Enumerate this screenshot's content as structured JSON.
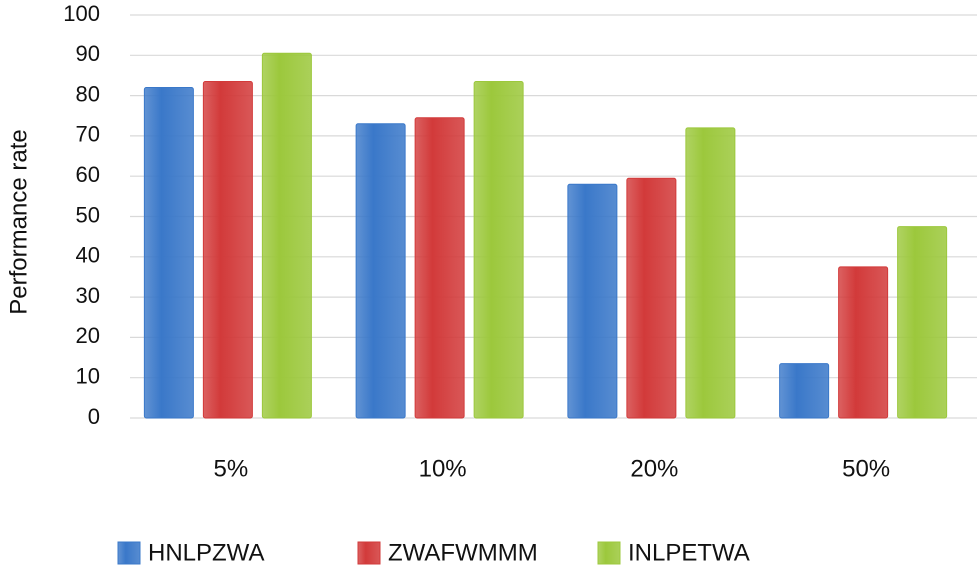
{
  "chart_data": {
    "type": "bar",
    "y_label": "Performance rate",
    "categories": [
      "5%",
      "10%",
      "20%",
      "50%"
    ],
    "series": [
      {
        "name": "HNLPZWA",
        "color": "#3a78c9",
        "values": [
          82,
          73,
          58,
          13.5
        ]
      },
      {
        "name": "ZWAFWMMM",
        "color": "#d23a3a",
        "values": [
          83.5,
          74.5,
          59.5,
          37.5
        ]
      },
      {
        "name": "INLPETWA",
        "color": "#9cc83c",
        "values": [
          90.5,
          83.5,
          72,
          47.5
        ]
      }
    ],
    "ylim": [
      0,
      100
    ],
    "yticks": [
      0,
      10,
      20,
      30,
      40,
      50,
      60,
      70,
      80,
      90,
      100
    ],
    "grid": true
  }
}
